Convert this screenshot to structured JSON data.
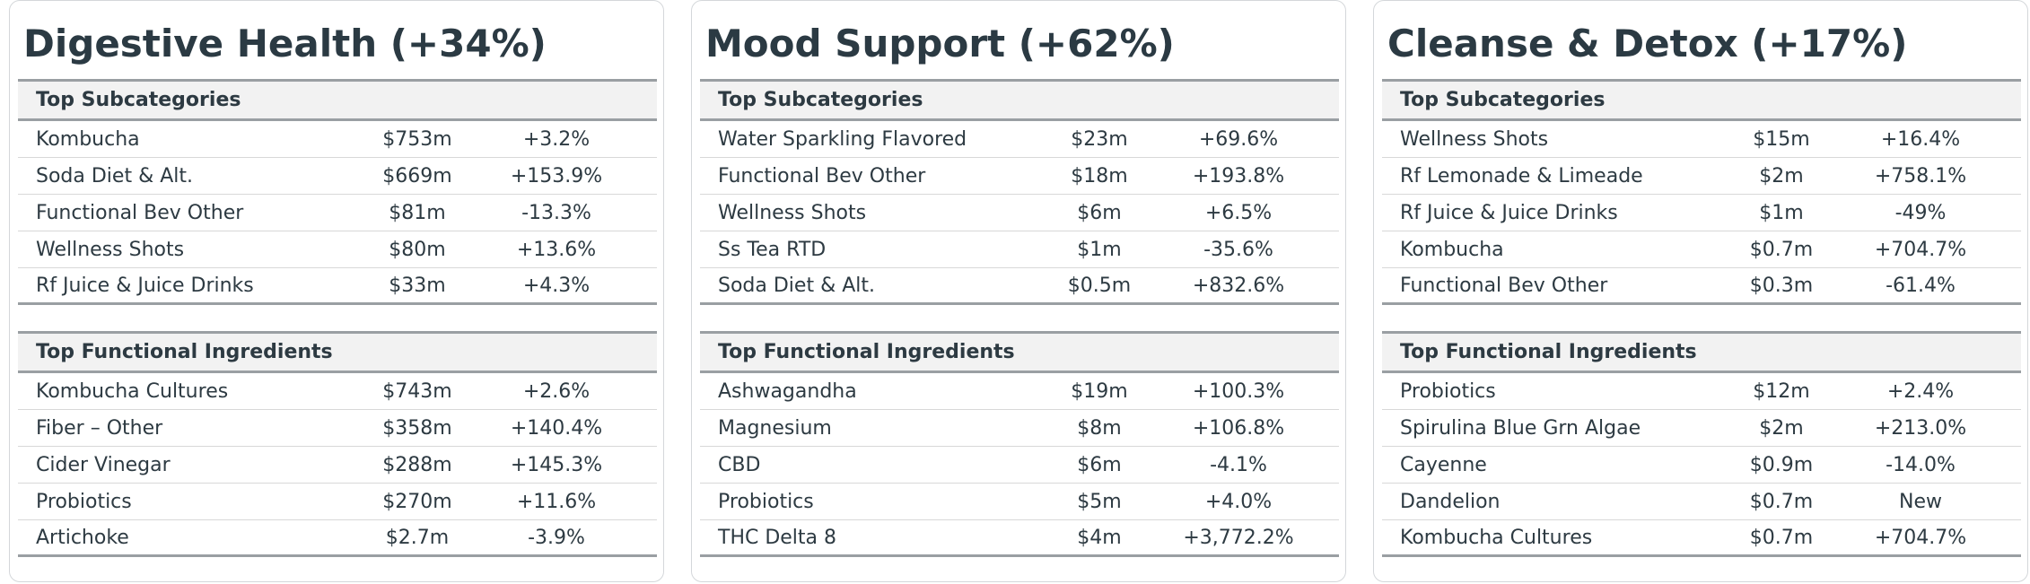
{
  "cards": [
    {
      "title": "Digestive Health (+34%)",
      "subcategories": {
        "heading": "Top Subcategories",
        "rows": [
          {
            "name": "Kombucha",
            "value": "$753m",
            "change": "+3.2%"
          },
          {
            "name": "Soda Diet & Alt.",
            "value": "$669m",
            "change": "+153.9%"
          },
          {
            "name": "Functional Bev Other",
            "value": "$81m",
            "change": "-13.3%"
          },
          {
            "name": "Wellness Shots",
            "value": "$80m",
            "change": "+13.6%"
          },
          {
            "name": "Rf Juice & Juice Drinks",
            "value": "$33m",
            "change": "+4.3%"
          }
        ]
      },
      "ingredients": {
        "heading": "Top Functional Ingredients",
        "rows": [
          {
            "name": "Kombucha Cultures",
            "value": "$743m",
            "change": "+2.6%"
          },
          {
            "name": "Fiber – Other",
            "value": "$358m",
            "change": "+140.4%"
          },
          {
            "name": "Cider Vinegar",
            "value": "$288m",
            "change": "+145.3%"
          },
          {
            "name": "Probiotics",
            "value": "$270m",
            "change": "+11.6%"
          },
          {
            "name": "Artichoke",
            "value": "$2.7m",
            "change": "-3.9%"
          }
        ]
      }
    },
    {
      "title": "Mood Support (+62%)",
      "subcategories": {
        "heading": "Top Subcategories",
        "rows": [
          {
            "name": "Water Sparkling Flavored",
            "value": "$23m",
            "change": "+69.6%"
          },
          {
            "name": "Functional Bev Other",
            "value": "$18m",
            "change": "+193.8%"
          },
          {
            "name": "Wellness Shots",
            "value": "$6m",
            "change": "+6.5%"
          },
          {
            "name": "Ss Tea RTD",
            "value": "$1m",
            "change": "-35.6%"
          },
          {
            "name": "Soda Diet & Alt.",
            "value": "$0.5m",
            "change": "+832.6%"
          }
        ]
      },
      "ingredients": {
        "heading": "Top Functional Ingredients",
        "rows": [
          {
            "name": "Ashwagandha",
            "value": "$19m",
            "change": "+100.3%"
          },
          {
            "name": "Magnesium",
            "value": "$8m",
            "change": "+106.8%"
          },
          {
            "name": "CBD",
            "value": "$6m",
            "change": "-4.1%"
          },
          {
            "name": "Probiotics",
            "value": "$5m",
            "change": "+4.0%"
          },
          {
            "name": "THC Delta 8",
            "value": "$4m",
            "change": "+3,772.2%"
          }
        ]
      }
    },
    {
      "title": "Cleanse & Detox (+17%)",
      "subcategories": {
        "heading": "Top Subcategories",
        "rows": [
          {
            "name": "Wellness Shots",
            "value": "$15m",
            "change": "+16.4%"
          },
          {
            "name": "Rf Lemonade & Limeade",
            "value": "$2m",
            "change": "+758.1%"
          },
          {
            "name": "Rf Juice & Juice Drinks",
            "value": "$1m",
            "change": "-49%"
          },
          {
            "name": "Kombucha",
            "value": "$0.7m",
            "change": "+704.7%"
          },
          {
            "name": "Functional Bev Other",
            "value": "$0.3m",
            "change": "-61.4%"
          }
        ]
      },
      "ingredients": {
        "heading": "Top Functional Ingredients",
        "rows": [
          {
            "name": "Probiotics",
            "value": "$12m",
            "change": "+2.4%"
          },
          {
            "name": "Spirulina Blue Grn Algae",
            "value": "$2m",
            "change": "+213.0%"
          },
          {
            "name": "Cayenne",
            "value": "$0.9m",
            "change": "-14.0%"
          },
          {
            "name": "Dandelion",
            "value": "$0.7m",
            "change": "New"
          },
          {
            "name": "Kombucha Cultures",
            "value": "$0.7m",
            "change": "+704.7%"
          }
        ]
      }
    }
  ]
}
